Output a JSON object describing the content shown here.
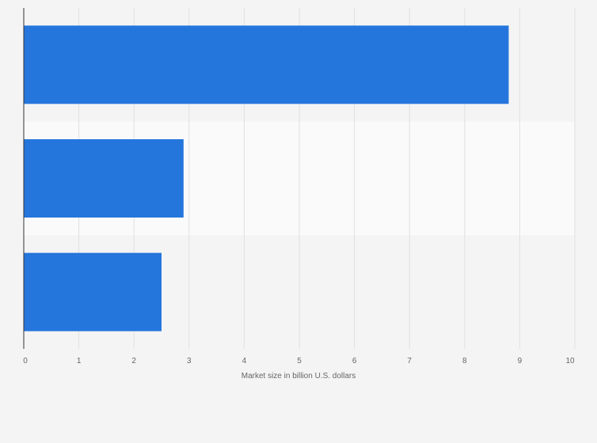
{
  "chart_data": {
    "type": "bar",
    "orientation": "horizontal",
    "categories": [
      "",
      "",
      ""
    ],
    "values": [
      8.8,
      2.9,
      2.5
    ],
    "title": "",
    "xlabel": "Market size in billion U.S. dollars",
    "ylabel": "",
    "xlim": [
      0,
      10
    ],
    "xticks": [
      "0",
      "1",
      "2",
      "3",
      "4",
      "5",
      "6",
      "7",
      "8",
      "9",
      "10"
    ],
    "grid": "vertical",
    "bar_color": "#2576dc",
    "band_colors": [
      "#f4f4f4",
      "#fafafa"
    ],
    "gridline_color": "#e0e0e0",
    "axis_color": "#333333"
  }
}
